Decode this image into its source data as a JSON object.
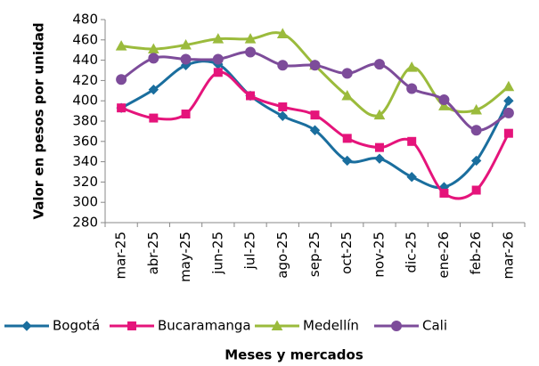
{
  "chart_data": {
    "type": "line",
    "y_label": "Valor en pesos por unidad",
    "x_label": "Meses  y mercados",
    "categories": [
      "mar-25",
      "abr-25",
      "may-25",
      "jun-25",
      "jul-25",
      "ago-25",
      "sep-25",
      "oct-25",
      "nov-25",
      "dic-25",
      "ene-26",
      "feb-26",
      "mar-26"
    ],
    "series": [
      {
        "name": "Bogotá",
        "color": "#1a6e9e",
        "marker": "diamond",
        "values": [
          393,
          411,
          435,
          436,
          405,
          385,
          371,
          341,
          343,
          325,
          315,
          341,
          400
        ]
      },
      {
        "name": "Bucaramanga",
        "color": "#e5147b",
        "marker": "square",
        "values": [
          393,
          383,
          387,
          428,
          405,
          394,
          386,
          363,
          354,
          360,
          309,
          312,
          368
        ]
      },
      {
        "name": "Medellín",
        "color": "#9bbb3c",
        "marker": "triangle",
        "values": [
          454,
          451,
          455,
          461,
          461,
          466,
          435,
          405,
          386,
          433,
          395,
          391,
          414
        ]
      },
      {
        "name": "Cali",
        "color": "#7d4c9a",
        "marker": "circle",
        "values": [
          421,
          442,
          441,
          441,
          448,
          435,
          435,
          427,
          436,
          412,
          401,
          371,
          388
        ]
      }
    ],
    "ylim": [
      280,
      480
    ],
    "yticks": [
      280,
      300,
      320,
      340,
      360,
      380,
      400,
      420,
      440,
      460,
      480
    ],
    "legend": "bottom"
  }
}
